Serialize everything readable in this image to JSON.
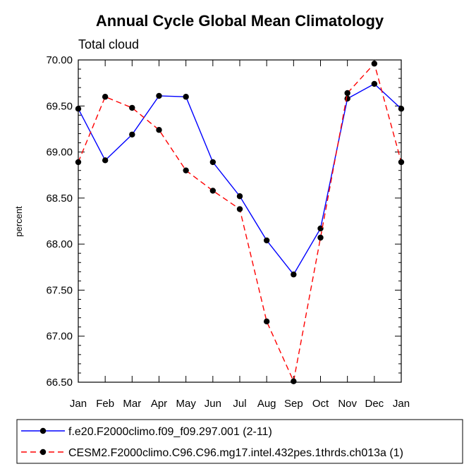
{
  "chart_data": {
    "type": "line",
    "title": "Annual Cycle Global Mean Climatology",
    "subtitle": "Total cloud",
    "xlabel": "",
    "ylabel": "percent",
    "categories": [
      "Jan",
      "Feb",
      "Mar",
      "Apr",
      "May",
      "Jun",
      "Jul",
      "Aug",
      "Sep",
      "Oct",
      "Nov",
      "Dec",
      "Jan"
    ],
    "ylim": [
      66.5,
      70.0
    ],
    "yticks": [
      "66.50",
      "67.00",
      "67.50",
      "68.00",
      "68.50",
      "69.00",
      "69.50",
      "70.00"
    ],
    "series": [
      {
        "name": "f.e20.F2000climo.f09_f09.297.001 (2-11)",
        "color": "#0000ff",
        "dash": "solid",
        "values": [
          69.47,
          68.91,
          69.19,
          69.61,
          69.6,
          68.89,
          68.52,
          68.04,
          67.67,
          68.17,
          69.58,
          69.74,
          69.47
        ]
      },
      {
        "name": "CESM2.F2000climo.C96.C96.mg17.intel.432pes.1thrds.ch013a (1)",
        "color": "#ff0000",
        "dash": "dashed",
        "values": [
          68.89,
          69.6,
          69.48,
          69.24,
          68.8,
          68.58,
          68.38,
          67.16,
          66.51,
          68.07,
          69.64,
          69.96,
          68.89
        ]
      }
    ],
    "grid": false,
    "legend_position": "bottom"
  }
}
